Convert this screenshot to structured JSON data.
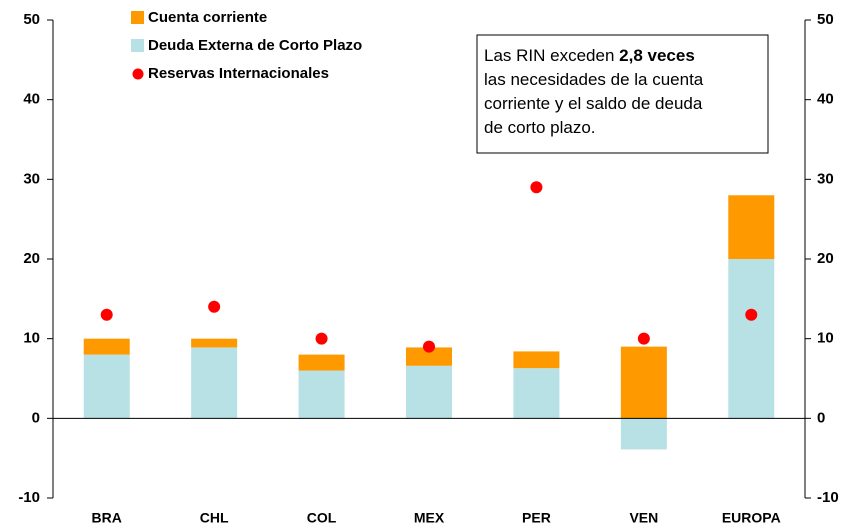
{
  "chart_data": {
    "type": "bar",
    "stacked": true,
    "categories": [
      "BRA",
      "CHL",
      "COL",
      "MEX",
      "PER",
      "VEN",
      "EUROPA"
    ],
    "series": [
      {
        "name": "Deuda Externa de Corto Plazo",
        "type": "bar",
        "color": "#b7e1e4",
        "values": [
          8,
          8.9,
          6,
          6.6,
          6.3,
          -3.9,
          20
        ]
      },
      {
        "name": "Cuenta corriente",
        "type": "bar",
        "color": "#ff9900",
        "values": [
          2,
          1.1,
          2,
          2.3,
          2.1,
          9,
          8
        ]
      },
      {
        "name": "Reservas Internacionales",
        "type": "scatter",
        "color": "#ff0000",
        "values": [
          13,
          14,
          10,
          9,
          29,
          10,
          13
        ]
      }
    ],
    "ylim": [
      -10,
      50
    ],
    "yticks": [
      -10,
      0,
      10,
      20,
      30,
      40,
      50
    ],
    "y2lim": [
      -10,
      50
    ],
    "y2ticks": [
      -10,
      0,
      10,
      20,
      30,
      40,
      50
    ],
    "grid": false,
    "legend": "top-left",
    "annotation_lines": [
      [
        {
          "text": "Las RIN exceden "
        },
        {
          "text": "2,8 veces",
          "bold": true
        }
      ],
      [
        {
          "text": "las necesidades de la cuenta"
        }
      ],
      [
        {
          "text": "corriente y el saldo de deuda"
        }
      ],
      [
        {
          "text": "de corto plazo."
        }
      ]
    ]
  }
}
